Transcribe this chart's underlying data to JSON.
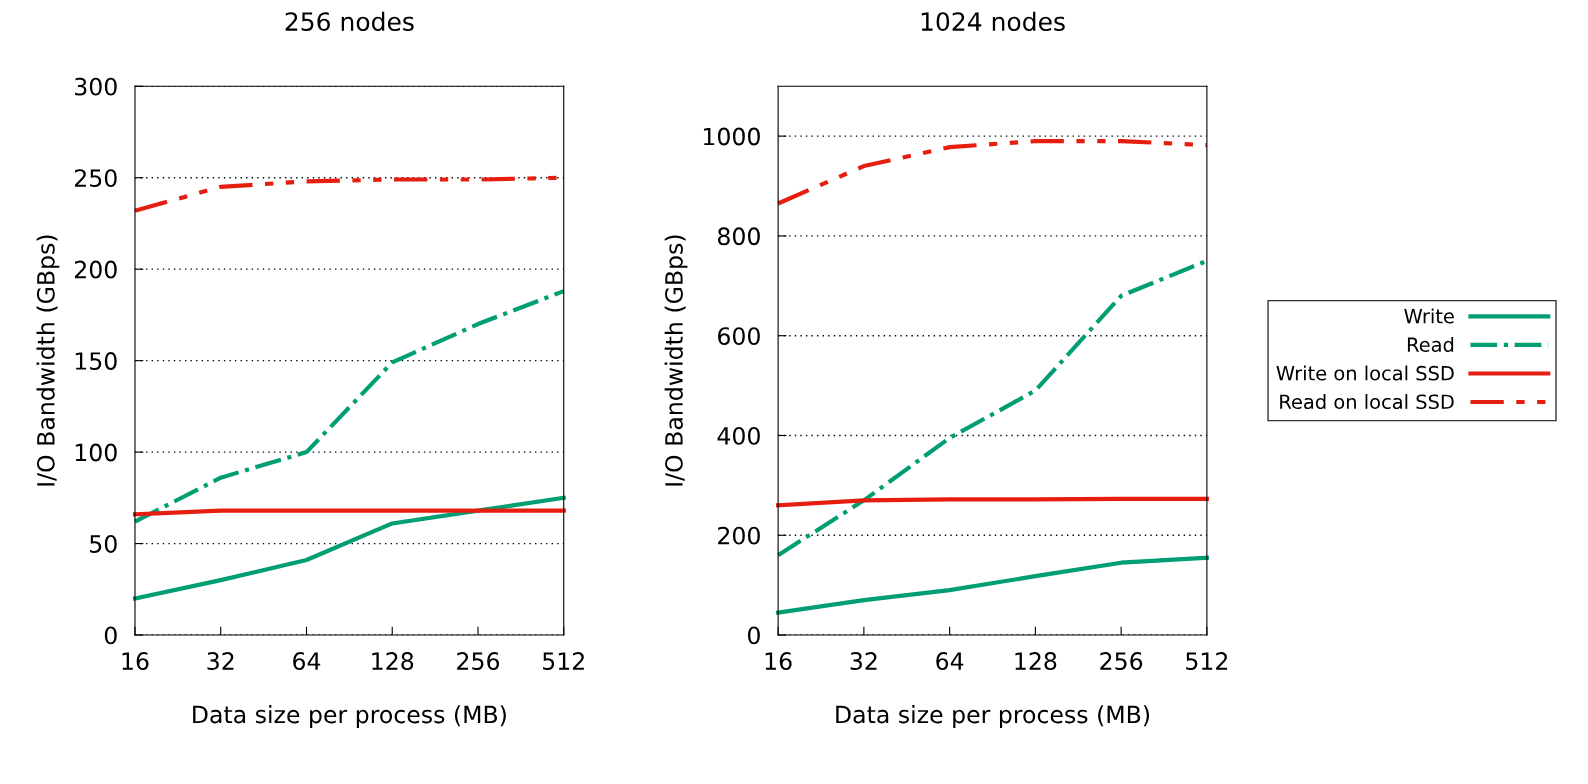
{
  "chart_data": [
    {
      "type": "line",
      "title": "256 nodes",
      "xlabel": "Data size per process (MB)",
      "ylabel": "I/O Bandwidth (GBps)",
      "log": "x",
      "x": [
        16,
        32,
        64,
        128,
        256,
        512
      ],
      "xlim": [
        16,
        512
      ],
      "xticks": [
        16,
        32,
        64,
        128,
        256,
        512
      ],
      "ylim": [
        0,
        300
      ],
      "yticks": [
        0,
        50,
        100,
        150,
        200,
        250,
        300
      ],
      "grid": "y",
      "legend": false,
      "series": [
        {
          "color": "#009e73",
          "line_style": "solid",
          "values": [
            20,
            30,
            41,
            61,
            68,
            75
          ]
        },
        {
          "color": "#009e73",
          "line_style": "dashdot",
          "values": [
            62,
            86,
            100,
            149,
            170,
            188
          ]
        },
        {
          "color": "#e51e10",
          "line_style": "solid",
          "values": [
            66,
            68,
            68,
            68,
            68,
            68
          ]
        },
        {
          "color": "#e51e10",
          "line_style": "dashdotdot",
          "values": [
            232,
            245,
            248,
            249,
            249,
            250
          ]
        }
      ]
    },
    {
      "type": "line",
      "title": "1024 nodes",
      "xlabel": "Data size per process (MB)",
      "ylabel": "I/O Bandwidth (GBps)",
      "log": "x",
      "x": [
        16,
        32,
        64,
        128,
        256,
        512
      ],
      "xlim": [
        16,
        512
      ],
      "xticks": [
        16,
        32,
        64,
        128,
        256,
        512
      ],
      "ylim": [
        0,
        1100
      ],
      "yticks": [
        0,
        200,
        400,
        600,
        800,
        1000
      ],
      "grid": "y",
      "legend": "right",
      "series": [
        {
          "name": "Write",
          "color": "#009e73",
          "line_style": "solid",
          "values": [
            45,
            70,
            90,
            118,
            145,
            155
          ]
        },
        {
          "name": "Read",
          "color": "#009e73",
          "line_style": "dashdot",
          "values": [
            160,
            270,
            395,
            490,
            680,
            750
          ]
        },
        {
          "name": "Write on local SSD",
          "color": "#e51e10",
          "line_style": "solid",
          "values": [
            260,
            270,
            272,
            272,
            273,
            273
          ]
        },
        {
          "name": "Read on local SSD",
          "color": "#e51e10",
          "line_style": "dashdotdot",
          "values": [
            865,
            940,
            978,
            990,
            990,
            982
          ]
        }
      ]
    }
  ]
}
